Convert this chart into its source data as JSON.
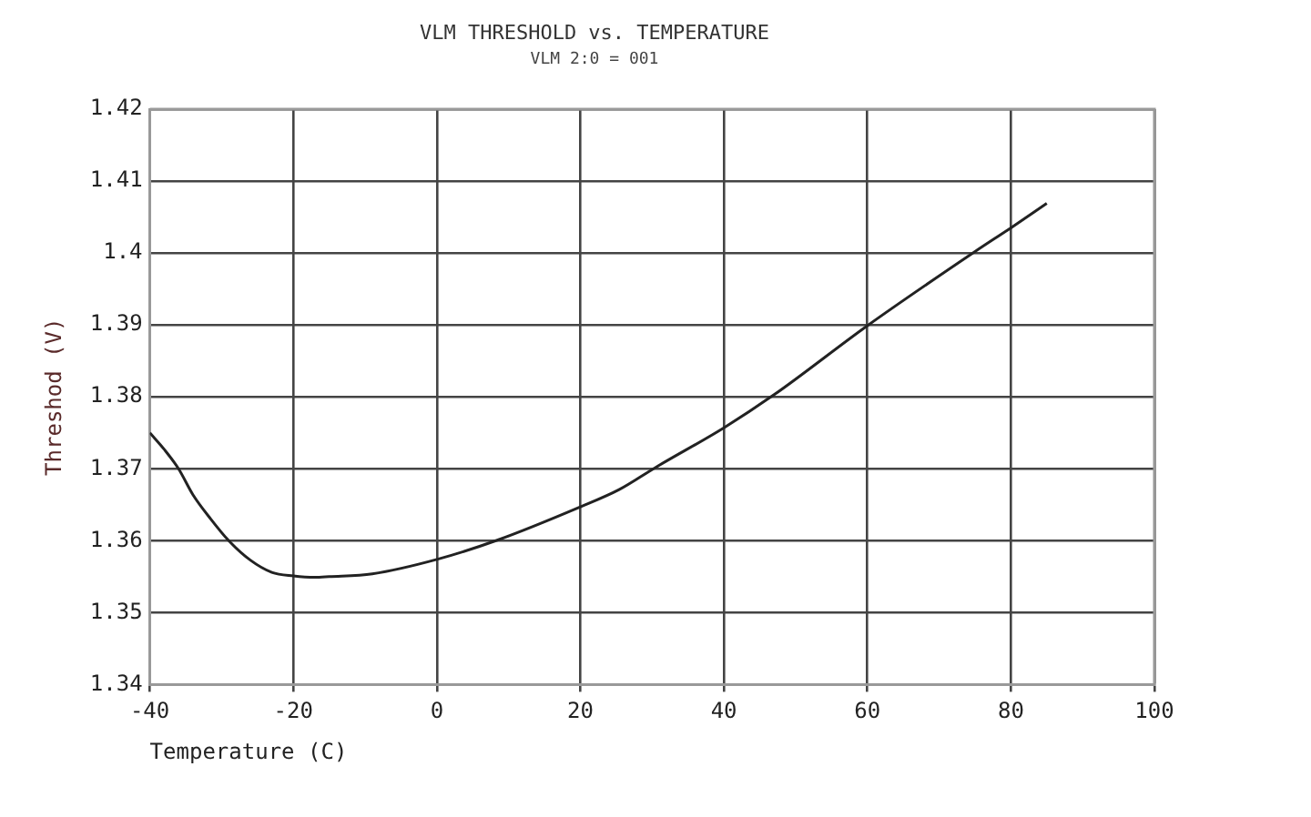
{
  "chart_data": {
    "type": "line",
    "title": "VLM THRESHOLD vs. TEMPERATURE",
    "subtitle": "VLM 2:0 = 001",
    "xlabel": "Temperature (C)",
    "ylabel": "Threshod (V)",
    "xlim": [
      -40,
      100
    ],
    "xticks": [
      -40,
      -20,
      0,
      20,
      40,
      60,
      80,
      100
    ],
    "ylim": [
      1.34,
      1.42
    ],
    "yticks": [
      1.34,
      1.35,
      1.36,
      1.37,
      1.38,
      1.39,
      1.4,
      1.41,
      1.42
    ],
    "grid": true,
    "marker": "none",
    "series": [
      {
        "color": "#222222",
        "x": [
          -40,
          -38,
          -36,
          -34,
          -31.5,
          -29,
          -26,
          -23,
          -20,
          -17,
          -15,
          -9,
          0,
          8.5,
          20,
          25.4,
          30.5,
          40,
          47,
          60,
          75,
          80,
          85
        ],
        "values": [
          1.375,
          1.3727,
          1.37,
          1.3664,
          1.363,
          1.36,
          1.3573,
          1.3556,
          1.3551,
          1.3549,
          1.355,
          1.3554,
          1.3574,
          1.3601,
          1.3647,
          1.3671,
          1.3702,
          1.3757,
          1.3803,
          1.3899,
          1.4002,
          1.4035,
          1.4069
        ]
      }
    ]
  }
}
